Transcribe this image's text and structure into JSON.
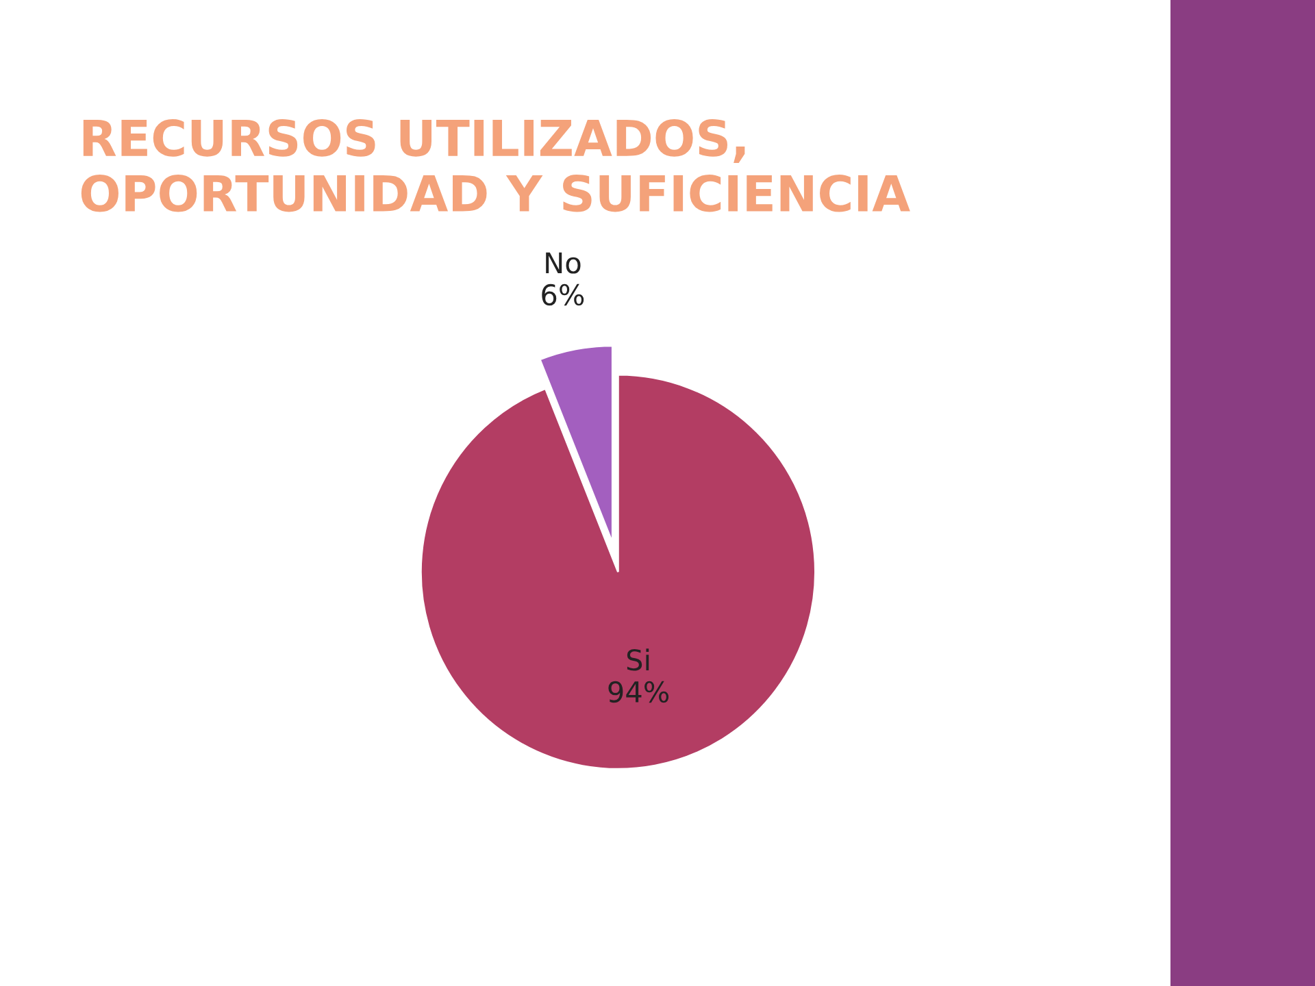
{
  "chart_data": {
    "type": "pie",
    "title": "RECURSOS UTILIZADOS, OPORTUNIDAD Y SUFICIENCIA",
    "categories": [
      "Si",
      "No"
    ],
    "values": [
      94,
      6
    ],
    "value_labels": [
      "94%",
      "6%"
    ],
    "colors": [
      "#b33d63",
      "#a35fbf"
    ],
    "legend": false
  }
}
